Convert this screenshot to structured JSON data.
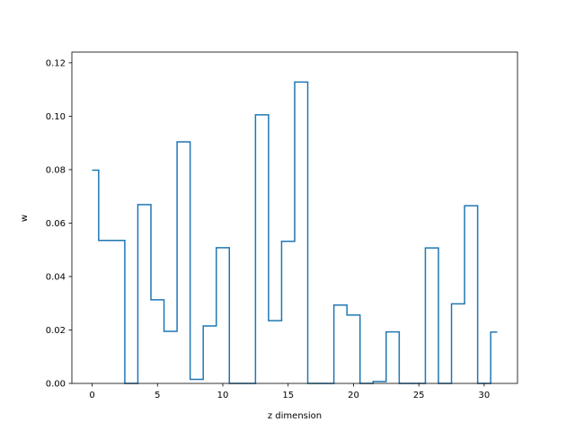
{
  "chart_data": {
    "type": "line",
    "drawstyle": "steps-mid",
    "title": "",
    "xlabel": "z dimension",
    "ylabel": "w",
    "xlim": [
      -1.55,
      32.55
    ],
    "ylim": [
      0.0,
      0.124
    ],
    "x_ticks": [
      0,
      5,
      10,
      15,
      20,
      25,
      30
    ],
    "y_ticks": [
      0.0,
      0.02,
      0.04,
      0.06,
      0.08,
      0.1,
      0.12
    ],
    "x_tick_labels": [
      "0",
      "5",
      "10",
      "15",
      "20",
      "25",
      "30"
    ],
    "y_tick_labels": [
      "0.00",
      "0.02",
      "0.04",
      "0.06",
      "0.08",
      "0.10",
      "0.12"
    ],
    "grid": false,
    "legend": "none",
    "series": [
      {
        "color": "#1f77b4",
        "x": [
          0,
          1,
          2,
          3,
          4,
          5,
          6,
          7,
          8,
          9,
          10,
          11,
          12,
          13,
          14,
          15,
          16,
          17,
          18,
          19,
          20,
          21,
          22,
          23,
          24,
          25,
          26,
          27,
          28,
          29,
          30,
          31
        ],
        "y": [
          0.0798,
          0.0535,
          0.0535,
          0.0,
          0.0669,
          0.0313,
          0.0195,
          0.0904,
          0.0015,
          0.0215,
          0.0508,
          0.0,
          0.0,
          0.1005,
          0.0235,
          0.0532,
          0.1128,
          0.0,
          0.0,
          0.0293,
          0.0256,
          0.0,
          0.0007,
          0.0193,
          0.0,
          0.0,
          0.0507,
          0.0,
          0.0298,
          0.0665,
          0.0,
          0.0192
        ]
      }
    ]
  }
}
